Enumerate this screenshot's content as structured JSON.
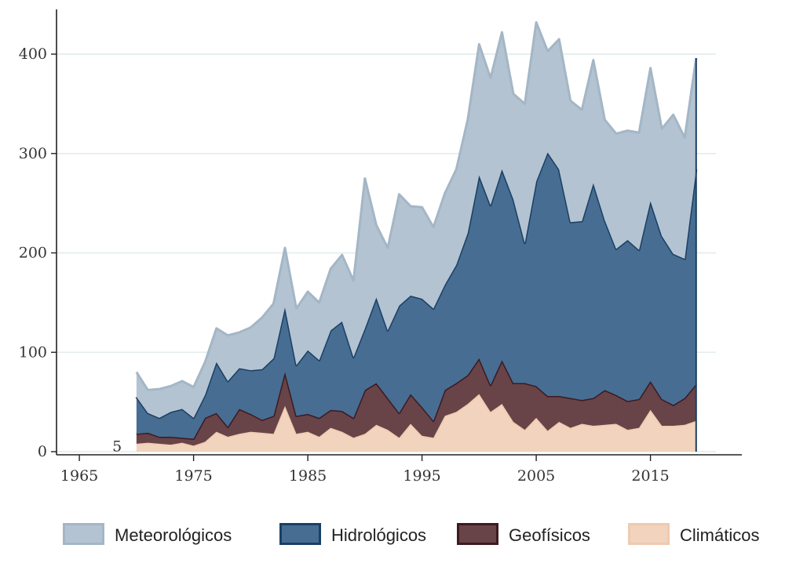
{
  "chart_data": {
    "type": "area",
    "stacked": true,
    "title": "",
    "xlabel": "",
    "ylabel": "",
    "xlim": [
      1963,
      2023
    ],
    "ylim": [
      0,
      445
    ],
    "x_ticks": [
      1965,
      1975,
      1985,
      1995,
      2005,
      2015
    ],
    "y_ticks": [
      0,
      100,
      200,
      300,
      400
    ],
    "grid": "horizontal",
    "legend_position": "bottom",
    "x": [
      1970,
      1971,
      1972,
      1973,
      1974,
      1975,
      1976,
      1977,
      1978,
      1979,
      1980,
      1981,
      1982,
      1983,
      1984,
      1985,
      1986,
      1987,
      1988,
      1989,
      1990,
      1991,
      1992,
      1993,
      1994,
      1995,
      1996,
      1997,
      1998,
      1999,
      2000,
      2001,
      2002,
      2003,
      2004,
      2005,
      2006,
      2007,
      2008,
      2009,
      2010,
      2011,
      2012,
      2013,
      2014,
      2015,
      2016,
      2017,
      2018,
      2019
    ],
    "series": [
      {
        "name": "Climáticos",
        "fill": "#f2d3bd",
        "stroke": "#efcab0",
        "values": [
          8,
          9,
          8,
          7,
          9,
          6,
          10,
          20,
          15,
          18,
          20,
          19,
          18,
          46,
          18,
          20,
          15,
          24,
          20,
          14,
          18,
          27,
          22,
          14,
          28,
          16,
          14,
          36,
          40,
          48,
          58,
          40,
          48,
          30,
          22,
          34,
          21,
          30,
          24,
          28,
          26,
          27,
          28,
          22,
          24,
          42,
          26,
          26,
          27,
          31
        ]
      },
      {
        "name": "Geofísicos",
        "fill": "#684448",
        "stroke": "#3d1a20",
        "values": [
          10,
          10,
          7,
          8,
          5,
          7,
          24,
          19,
          10,
          25,
          18,
          13,
          18,
          34,
          18,
          18,
          19,
          18,
          21,
          20,
          44,
          42,
          32,
          25,
          30,
          29,
          17,
          26,
          29,
          29,
          36,
          27,
          44,
          39,
          47,
          32,
          35,
          26,
          30,
          24,
          28,
          35,
          29,
          29,
          29,
          29,
          27,
          21,
          27,
          37
        ]
      },
      {
        "name": "Hidrológicos",
        "fill": "#476d92",
        "stroke": "#1a3f64",
        "values": [
          37,
          20,
          19,
          25,
          29,
          21,
          23,
          51,
          46,
          41,
          44,
          51,
          58,
          65,
          51,
          64,
          58,
          80,
          90,
          61,
          62,
          86,
          68,
          108,
          99,
          109,
          113,
          106,
          119,
          143,
          184,
          181,
          192,
          185,
          141,
          206,
          245,
          228,
          177,
          180,
          216,
          171,
          147,
          162,
          150,
          181,
          164,
          152,
          140,
          216
        ]
      },
      {
        "name": "Meteorológicos",
        "fill": "#b3c3d1",
        "stroke": "#a4b6c6",
        "values": [
          25,
          23,
          29,
          26,
          28,
          31,
          33,
          34,
          46,
          36,
          43,
          52,
          55,
          60,
          57,
          59,
          58,
          62,
          67,
          77,
          151,
          73,
          83,
          112,
          90,
          92,
          82,
          92,
          96,
          114,
          132,
          128,
          138,
          106,
          140,
          160,
          102,
          131,
          122,
          112,
          124,
          101,
          116,
          110,
          118,
          134,
          108,
          140,
          122,
          112
        ]
      }
    ],
    "stray_label": "5",
    "stray_label_x": 1968.3,
    "stray_label_y": 5
  }
}
